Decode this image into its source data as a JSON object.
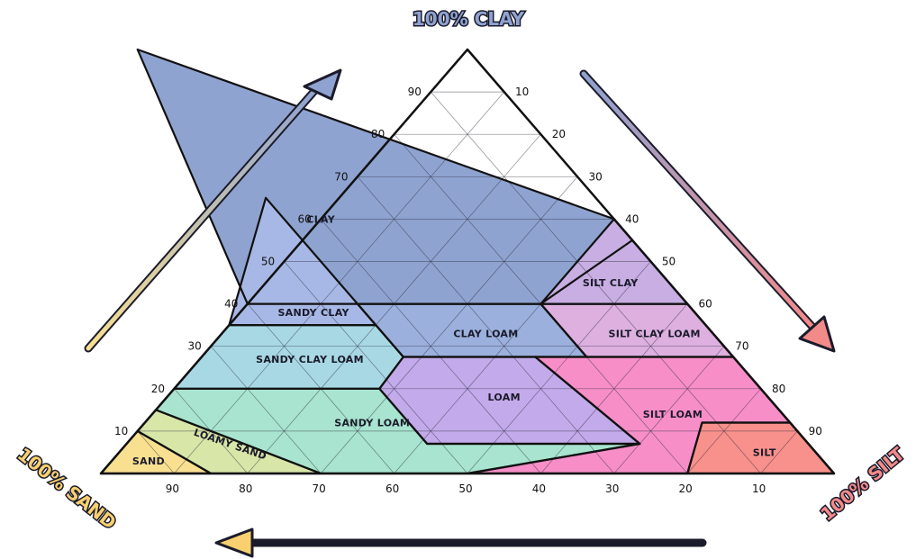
{
  "corners": {
    "clay": "100% CLAY",
    "sand": "100% SAND",
    "silt": "100% SILT"
  },
  "colors": {
    "clay": "#8fa3d0",
    "sandy_clay": "#a8b8e6",
    "silt_clay": "#c8aee2",
    "clay_loam": "#9bb0dc",
    "silt_clay_loam": "#ddb0e0",
    "sandy_clay_loam": "#a8d8e4",
    "loam": "#c3aaea",
    "silt_loam": "#f78ec8",
    "sandy_loam": "#a8e4cf",
    "loamy_sand": "#d8e6a8",
    "sand": "#f8e090",
    "silt": "#f8908c",
    "corner_clay": "#8fa3d0",
    "corner_sand": "#f8d070",
    "corner_silt": "#f28a8a"
  },
  "regions": [
    {
      "key": "clay",
      "label": "CLAY",
      "points": [
        [
          45,
          100
        ],
        [
          0,
          60
        ],
        [
          0,
          55
        ],
        [
          20,
          40
        ],
        [
          40,
          40
        ],
        [
          60,
          40
        ]
      ]
    },
    {
      "key": "sandy_clay",
      "label": "SANDY CLAY",
      "points": [
        [
          45,
          65
        ],
        [
          65,
          35
        ],
        [
          45,
          35
        ]
      ]
    },
    {
      "key": "silt_clay",
      "label": "SILT CLAY",
      "points": [
        [
          0,
          60
        ],
        [
          0,
          40
        ],
        [
          20,
          40
        ]
      ]
    },
    {
      "key": "clay_loam",
      "label": "CLAY LOAM",
      "points": [
        [
          20,
          40
        ],
        [
          20,
          27.5
        ],
        [
          45,
          27.5
        ],
        [
          45,
          40
        ]
      ]
    },
    {
      "key": "silt_clay_loam",
      "label": "SILT CLAY LOAM",
      "points": [
        [
          0,
          40
        ],
        [
          0,
          27.5
        ],
        [
          20,
          27.5
        ],
        [
          20,
          40
        ]
      ]
    },
    {
      "key": "sandy_clay_loam",
      "label": "SANDY CLAY LOAM",
      "points": [
        [
          45,
          35
        ],
        [
          65,
          35
        ],
        [
          80,
          20
        ],
        [
          52,
          20
        ],
        [
          45,
          27.5
        ]
      ]
    },
    {
      "key": "loam",
      "label": "LOAM",
      "points": [
        [
          45,
          27.5
        ],
        [
          52,
          20
        ],
        [
          52,
          7
        ],
        [
          23,
          7
        ],
        [
          27,
          27.5
        ]
      ]
    },
    {
      "key": "silt_loam",
      "label": "SILT LOAM",
      "points": [
        [
          0,
          27.5
        ],
        [
          27,
          27.5
        ],
        [
          23,
          7
        ],
        [
          50,
          0
        ],
        [
          20,
          0
        ],
        [
          12,
          12
        ],
        [
          0,
          12
        ]
      ]
    },
    {
      "key": "sandy_loam",
      "label": "SANDY LOAM",
      "points": [
        [
          80,
          20
        ],
        [
          52,
          20
        ],
        [
          52,
          7
        ],
        [
          23,
          7
        ],
        [
          50,
          0
        ],
        [
          70,
          0
        ],
        [
          85,
          15
        ]
      ]
    },
    {
      "key": "loamy_sand",
      "label": "LOAMY SAND",
      "points": [
        [
          85,
          15
        ],
        [
          70,
          0
        ],
        [
          85,
          0
        ],
        [
          90,
          10
        ]
      ]
    },
    {
      "key": "sand",
      "label": "SAND",
      "points": [
        [
          90,
          10
        ],
        [
          85,
          0
        ],
        [
          100,
          0
        ]
      ]
    },
    {
      "key": "silt",
      "label": "SILT",
      "points": [
        [
          12,
          12
        ],
        [
          20,
          0
        ],
        [
          0,
          0
        ],
        [
          0,
          12
        ]
      ]
    }
  ],
  "label_positions": {
    "clay": [
      40,
      60
    ],
    "sandy_clay": [
      52,
      38
    ],
    "silt_clay": [
      8,
      45
    ],
    "clay_loam": [
      31,
      33
    ],
    "silt_clay_loam": [
      8,
      33
    ],
    "sandy_clay_loam": [
      58,
      27
    ],
    "loam": [
      36,
      18
    ],
    "silt_loam": [
      15,
      14
    ],
    "sandy_loam": [
      57,
      12
    ],
    "loamy_sand": [
      79,
      7
    ],
    "sand": [
      92,
      3
    ],
    "silt": [
      7,
      5
    ]
  },
  "ticks": {
    "left": [
      "10",
      "20",
      "30",
      "40",
      "50",
      "60",
      "70",
      "80",
      "90"
    ],
    "right": [
      "10",
      "20",
      "30",
      "40",
      "50",
      "60",
      "70",
      "80",
      "90"
    ],
    "bottom": [
      "90",
      "80",
      "70",
      "60",
      "50",
      "40",
      "30",
      "20",
      "10"
    ]
  }
}
